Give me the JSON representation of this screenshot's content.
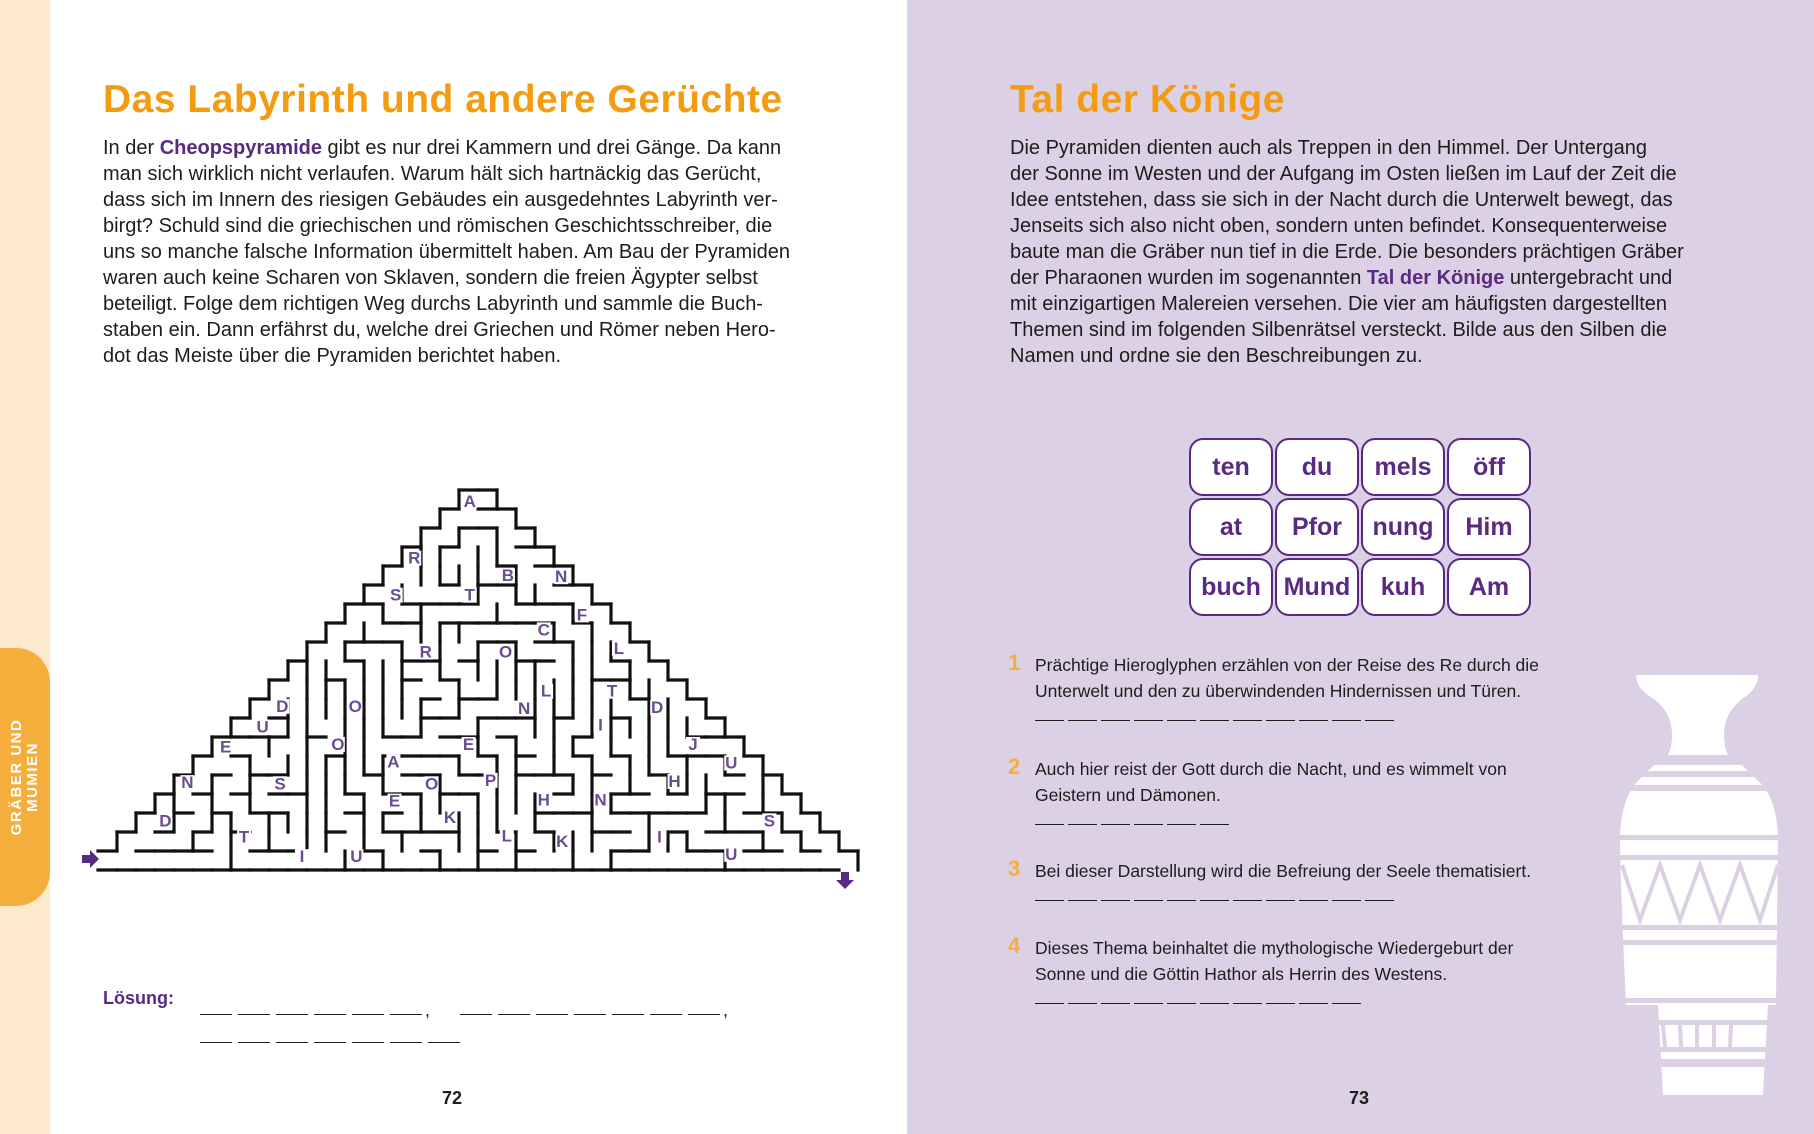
{
  "spine": {
    "tab_label_line1": "GRÄBER UND",
    "tab_label_line2": "MUMIEN"
  },
  "colors": {
    "title": "#f39c12",
    "accent_purple": "#5a2a82",
    "right_page_bg": "#dcd0e4",
    "spine_bg": "#fde9cc",
    "tab": "#f5ae3c"
  },
  "left_page": {
    "title": "Das Labyrinth und andere Gerüchte",
    "lines": [
      {
        "pre": "In der ",
        "bold": "Cheopspyramide",
        "post": " gibt es nur drei Kammern und drei Gänge. Da kann"
      },
      {
        "pre": "man sich wirklich nicht verlaufen. Warum hält sich hartnäckig das Gerücht,"
      },
      {
        "pre": "dass sich im Innern des riesigen Gebäudes ein ausgedehntes Labyrinth ver-"
      },
      {
        "pre": "birgt? Schuld sind die griechischen und römischen Geschichtsschreiber, die"
      },
      {
        "pre": "uns so manche falsche Information übermittelt haben. Am Bau der Pyramiden"
      },
      {
        "pre": "waren auch keine Scharen von Sklaven, sondern die freien Ägypter selbst"
      },
      {
        "pre": "beteiligt. Folge dem richtigen Weg durchs Labyrinth und sammle die Buch-"
      },
      {
        "pre": "staben ein. Dann erfährst du, welche drei Griechen und Römer neben Hero-"
      },
      {
        "pre": "dot das Meiste über die Pyramiden berichtet haben."
      }
    ],
    "maze": {
      "letters": [
        "A",
        "R",
        "B",
        "N",
        "S",
        "T",
        "F",
        "C",
        "R",
        "O",
        "L",
        "L",
        "T",
        "D",
        "O",
        "N",
        "D",
        "U",
        "I",
        "E",
        "O",
        "E",
        "J",
        "A",
        "U",
        "N",
        "S",
        "O",
        "P",
        "H",
        "H",
        "N",
        "E",
        "D",
        "K",
        "S",
        "T",
        "L",
        "K",
        "I",
        "I",
        "U",
        "U"
      ],
      "entry_icon": "arrow-right-icon",
      "exit_icon": "arrow-down-icon"
    },
    "solution_label": "Lösung:",
    "solution_blanks": [
      6,
      7,
      7
    ],
    "page_number": "72"
  },
  "right_page": {
    "title": "Tal der Könige",
    "lines": [
      {
        "pre": "Die Pyramiden dienten auch als Treppen in den Himmel. Der Untergang"
      },
      {
        "pre": "der Sonne im Westen und der Aufgang im Osten ließen im Lauf der Zeit die"
      },
      {
        "pre": "Idee entstehen, dass sie sich in der Nacht durch die Unterwelt bewegt, das"
      },
      {
        "pre": "Jenseits sich also nicht oben, sondern unten befindet. Konsequenterweise"
      },
      {
        "pre": "baute man die Gräber nun tief in die Erde. Die besonders prächtigen Gräber"
      },
      {
        "pre": "der Pharaonen wurden im sogenannten ",
        "bold": "Tal der Könige",
        "post": " untergebracht und"
      },
      {
        "pre": "mit einzigartigen Malereien versehen. Die vier am häufigsten dargestellten"
      },
      {
        "pre": "Themen sind im folgenden Silbenrätsel versteckt. Bilde aus den Silben die"
      },
      {
        "pre": "Namen und ordne sie den Beschreibungen zu."
      }
    ],
    "syllables": [
      "ten",
      "du",
      "mels",
      "öff",
      "at",
      "Pfor",
      "nung",
      "Him",
      "buch",
      "Mund",
      "kuh",
      "Am"
    ],
    "questions": [
      {
        "number": "1",
        "line1": "Prächtige Hieroglyphen erzählen von der Reise des Re durch die",
        "line2": "Unterwelt und den zu überwindenden Hindernissen und Türen.",
        "blanks": 11
      },
      {
        "number": "2",
        "line1": "Auch hier reist der Gott durch die Nacht, und es wimmelt von",
        "line2": "Geistern und Dämonen.",
        "blanks": 6
      },
      {
        "number": "3",
        "line1": "Bei dieser Darstellung wird die Befreiung der Seele thematisiert.",
        "line2": "",
        "blanks": 11
      },
      {
        "number": "4",
        "line1": "Dieses Thema beinhaltet die mythologische Wiedergeburt der",
        "line2": "Sonne und die Göttin Hathor als Herrin des Westens.",
        "blanks": 10
      }
    ],
    "decoration": "vase-illustration",
    "page_number": "73"
  }
}
